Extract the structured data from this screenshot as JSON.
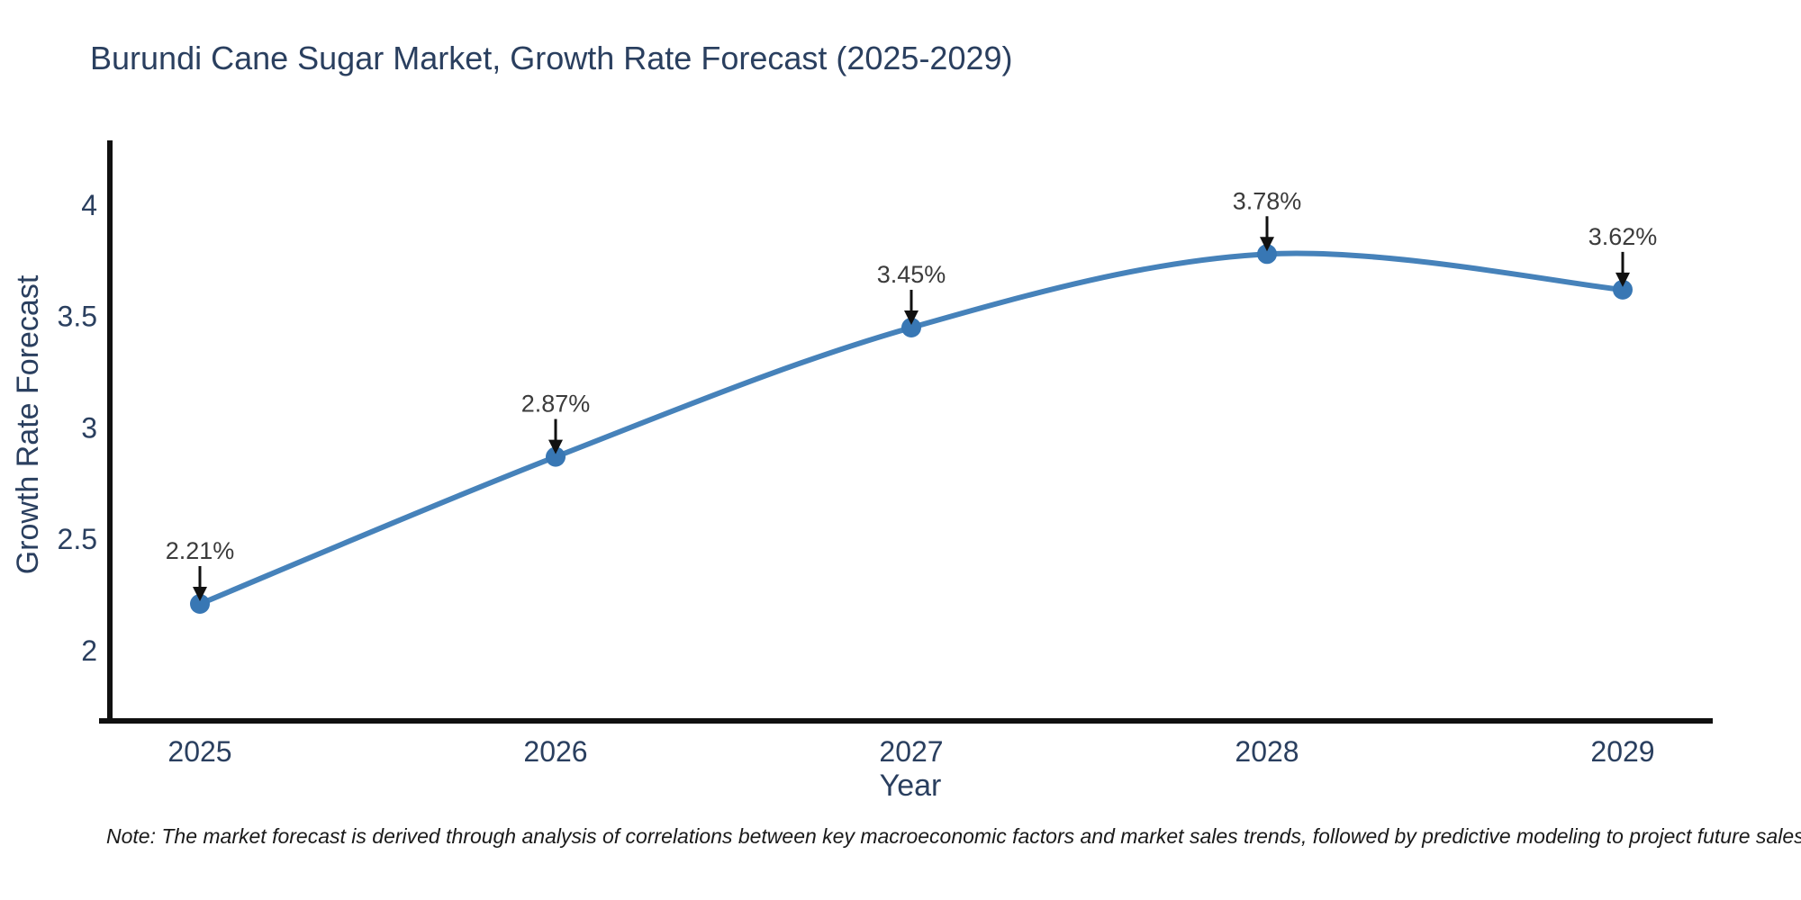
{
  "header": {
    "title": "Burundi Cane Sugar Market, Growth Rate Forecast (2025-2029)"
  },
  "footnote": {
    "text": "Note: The market forecast is derived through analysis of correlations between key macroeconomic factors and market sales trends, followed by predictive modeling to project future sales"
  },
  "colors": {
    "background": "#ffffff",
    "title_text": "#2a3f5f",
    "axis_text": "#2a3f5f",
    "axis_line": "#101010",
    "series_line": "#4682ba",
    "marker_fill": "#3877b4",
    "annotation_text": "#3b3b3b",
    "annotation_arrow": "#111111",
    "note_text": "#1a1a1a"
  },
  "chart_data": {
    "type": "line",
    "title": "Burundi Cane Sugar Market, Growth Rate Forecast (2025-2029)",
    "xlabel": "Year",
    "ylabel": "Growth Rate Forecast",
    "categories": [
      "2025",
      "2026",
      "2027",
      "2028",
      "2029"
    ],
    "values": [
      2.21,
      2.87,
      3.45,
      3.78,
      3.62
    ],
    "point_labels": [
      "2.21%",
      "2.87%",
      "3.45%",
      "3.78%",
      "3.62%"
    ],
    "yticks": [
      "2",
      "2.5",
      "3",
      "3.5",
      "4"
    ],
    "ylim": [
      1.685,
      4.29
    ],
    "line_shape": "spline",
    "grid": false,
    "legend": "none",
    "annotation_arrows": true,
    "note": "Note: The market forecast is derived through analysis of correlations between key macroeconomic factors and market sales trends, followed by predictive modeling to project future sales"
  }
}
